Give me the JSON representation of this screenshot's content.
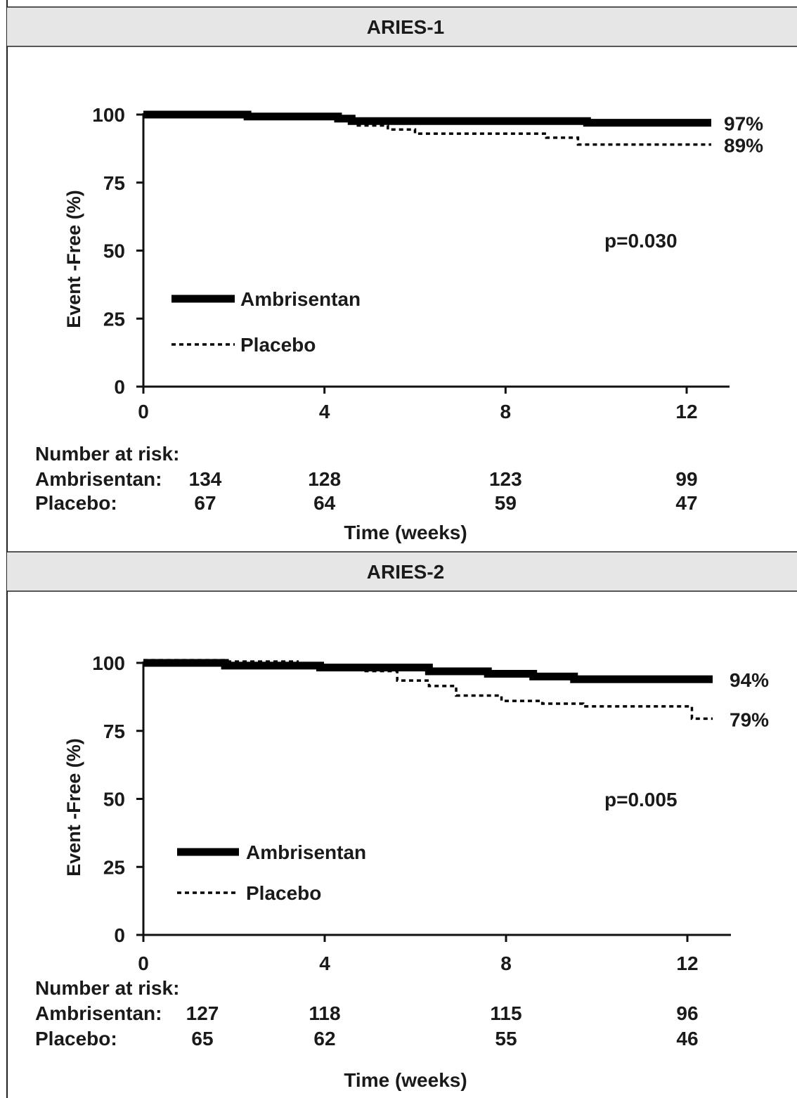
{
  "chart_data": [
    {
      "type": "line",
      "title": "ARIES-1",
      "ylabel": "Event  -Free (%)",
      "xlabel": "Time (weeks)",
      "xlim": [
        0,
        12.5
      ],
      "ylim": [
        0,
        100
      ],
      "xticks": [
        0,
        4,
        8,
        12
      ],
      "yticks": [
        0,
        25,
        50,
        75,
        100
      ],
      "annotation": "p=0.030",
      "series": [
        {
          "name": "Ambrisentan",
          "style": "solid",
          "end_label": "97%",
          "x": [
            0,
            2.3,
            4.3,
            4.6,
            9.8,
            12.5
          ],
          "y": [
            100,
            99.3,
            98.5,
            97.6,
            97,
            97
          ]
        },
        {
          "name": "Placebo",
          "style": "dotted",
          "end_label": "89%",
          "x": [
            0,
            2.2,
            4.4,
            4.7,
            5.4,
            6.0,
            8.9,
            9.6,
            12.5
          ],
          "y": [
            100,
            99.5,
            98.5,
            96.0,
            94.5,
            93.0,
            91.5,
            89,
            89
          ]
        }
      ],
      "risk_table": {
        "header": "Number at risk:",
        "times": [
          0,
          4,
          8,
          12
        ],
        "rows": [
          {
            "label": "Ambrisentan:",
            "values": [
              "134",
              "128",
              "123",
              "99"
            ]
          },
          {
            "label": "Placebo:",
            "values": [
              "67",
              "64",
              "59",
              "47"
            ]
          }
        ]
      }
    },
    {
      "type": "line",
      "title": "ARIES-2",
      "ylabel": "Event  -Free (%)",
      "xlabel": "Time (weeks)",
      "xlim": [
        0,
        12.5
      ],
      "ylim": [
        0,
        100
      ],
      "xticks": [
        0,
        4,
        8,
        12
      ],
      "yticks": [
        0,
        25,
        50,
        75,
        100
      ],
      "annotation": "p=0.005",
      "series": [
        {
          "name": "Ambrisentan",
          "style": "solid",
          "end_label": "94%",
          "x": [
            0,
            1.8,
            3.9,
            6.3,
            7.6,
            8.6,
            9.5,
            12.5
          ],
          "y": [
            100,
            99,
            98.3,
            96.9,
            96,
            95,
            94,
            94
          ]
        },
        {
          "name": "Placebo",
          "style": "dotted",
          "end_label": "79%",
          "x": [
            0,
            1.8,
            3.4,
            4.8,
            5.6,
            6.3,
            6.9,
            7.9,
            8.8,
            9.7,
            12.1,
            12.5
          ],
          "y": [
            101,
            100.5,
            99,
            97,
            93.5,
            91.5,
            88,
            86,
            85,
            84,
            79.5,
            79.5
          ]
        }
      ],
      "risk_table": {
        "header": "Number at risk:",
        "times": [
          0,
          4,
          8,
          12
        ],
        "rows": [
          {
            "label": "Ambrisentan:",
            "values": [
              "127",
              "118",
              "115",
              "96"
            ]
          },
          {
            "label": "Placebo:",
            "values": [
              "65",
              "62",
              "55",
              "46"
            ]
          }
        ]
      }
    }
  ]
}
